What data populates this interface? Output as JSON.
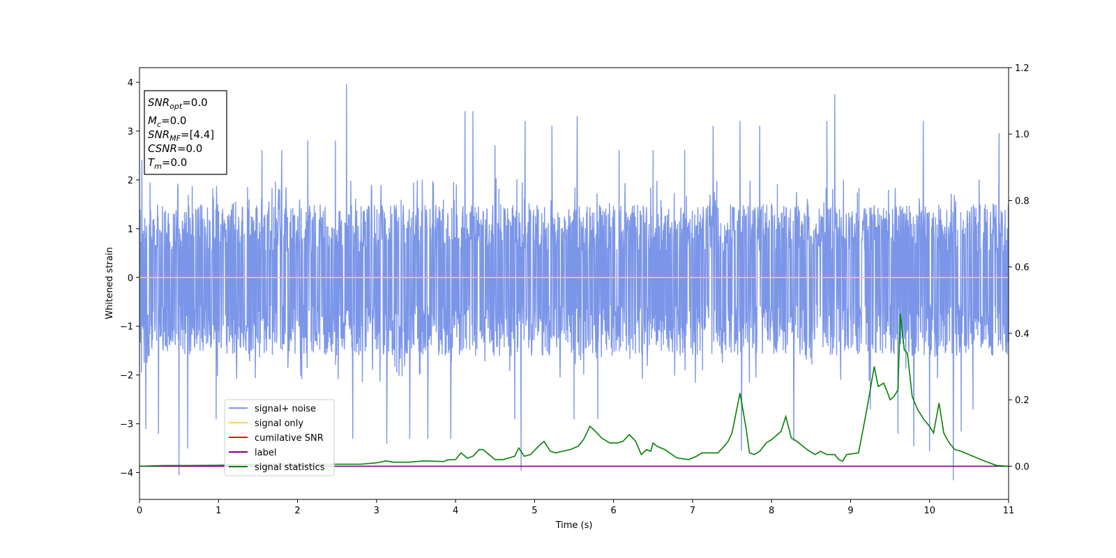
{
  "chart_data": {
    "type": "line",
    "xlabel": "Time (s)",
    "ylabel": "Whitened strain",
    "xlim": [
      0,
      11
    ],
    "ylim_left": [
      -4.55,
      4.3
    ],
    "ylim_right": [
      -0.1,
      1.2
    ],
    "x_ticks": [
      "0",
      "1",
      "2",
      "3",
      "4",
      "5",
      "6",
      "7",
      "8",
      "9",
      "10",
      "11"
    ],
    "x_tick_values": [
      0,
      1,
      2,
      3,
      4,
      5,
      6,
      7,
      8,
      9,
      10,
      11
    ],
    "y_ticks_left": [
      "−4",
      "−3",
      "−2",
      "−1",
      "0",
      "1",
      "2",
      "3",
      "4"
    ],
    "y_tick_values_left": [
      -4,
      -3,
      -2,
      -1,
      0,
      1,
      2,
      3,
      4
    ],
    "y_ticks_right": [
      "0.0",
      "0.2",
      "0.4",
      "0.6",
      "0.8",
      "1.0",
      "1.2"
    ],
    "y_tick_values_right": [
      0.0,
      0.2,
      0.4,
      0.6,
      0.8,
      1.0,
      1.2
    ],
    "info_box": {
      "snr_opt": "=0.0",
      "mc": "=0.0",
      "snr_mf": "=[4.4]",
      "csnr": "=0.0",
      "tm": "=0.0"
    },
    "legend": {
      "position": "lower-left",
      "entries": [
        {
          "label": "signal+ noise",
          "color": "#7b96e8"
        },
        {
          "label": "signal only",
          "color": "#ffcc66"
        },
        {
          "label": "cumilative SNR",
          "color": "#ff0000"
        },
        {
          "label": "label",
          "color": "#800080"
        },
        {
          "label": "signal statistics",
          "color": "#008000"
        }
      ]
    },
    "series": [
      {
        "name": "signal+ noise",
        "axis": "left",
        "color": "#7b96e8",
        "envelope": {
          "typical_upper": 1.5,
          "typical_lower": -1.6
        },
        "spikes": [
          [
            0.03,
            2.4
          ],
          [
            0.08,
            -3.1
          ],
          [
            0.24,
            -3.2
          ],
          [
            0.5,
            -4.05
          ],
          [
            0.61,
            -3.5
          ],
          [
            0.97,
            -2.9
          ],
          [
            1.55,
            2.6
          ],
          [
            1.8,
            2.6
          ],
          [
            2.13,
            2.8
          ],
          [
            2.48,
            2.8
          ],
          [
            2.62,
            3.95
          ],
          [
            2.7,
            -3.3
          ],
          [
            3.13,
            -3.4
          ],
          [
            3.42,
            -3.3
          ],
          [
            3.65,
            -3.3
          ],
          [
            3.94,
            -3.3
          ],
          [
            4.12,
            3.4
          ],
          [
            4.22,
            3.4
          ],
          [
            4.5,
            2.7
          ],
          [
            4.75,
            -2.9
          ],
          [
            4.83,
            -3.95
          ],
          [
            4.88,
            3.2
          ],
          [
            5.22,
            3.1
          ],
          [
            5.5,
            -2.9
          ],
          [
            5.54,
            3.3
          ],
          [
            5.8,
            -2.9
          ],
          [
            6.07,
            2.6
          ],
          [
            6.5,
            2.6
          ],
          [
            6.9,
            2.6
          ],
          [
            7.26,
            3.1
          ],
          [
            7.6,
            3.2
          ],
          [
            7.62,
            -3.55
          ],
          [
            7.85,
            3.1
          ],
          [
            8.28,
            -3.35
          ],
          [
            8.7,
            3.2
          ],
          [
            8.8,
            3.75
          ],
          [
            9.25,
            -2.7
          ],
          [
            9.6,
            -3.2
          ],
          [
            9.8,
            -3.45
          ],
          [
            9.92,
            3.2
          ],
          [
            10.0,
            -3.55
          ],
          [
            10.3,
            -4.15
          ],
          [
            10.4,
            -3.15
          ],
          [
            10.55,
            -2.7
          ],
          [
            10.88,
            2.95
          ]
        ]
      },
      {
        "name": "signal only",
        "axis": "left",
        "color": "#ffcc66",
        "x": [
          0,
          11
        ],
        "y": [
          0,
          0
        ]
      },
      {
        "name": "label",
        "axis": "right",
        "color": "#800080",
        "x": [
          0,
          11
        ],
        "y": [
          0,
          0
        ]
      },
      {
        "name": "signal statistics",
        "axis": "right",
        "color": "#008000",
        "x": [
          0,
          0.3,
          0.6,
          1.0,
          1.5,
          2.0,
          2.5,
          2.8,
          3.0,
          3.12,
          3.22,
          3.4,
          3.6,
          3.7,
          3.85,
          3.9,
          4.0,
          4.07,
          4.15,
          4.22,
          4.3,
          4.35,
          4.5,
          4.6,
          4.75,
          4.8,
          4.87,
          4.95,
          5.05,
          5.12,
          5.2,
          5.27,
          5.35,
          5.45,
          5.55,
          5.62,
          5.7,
          5.75,
          5.85,
          5.95,
          6.05,
          6.12,
          6.2,
          6.28,
          6.35,
          6.42,
          6.47,
          6.5,
          6.55,
          6.65,
          6.8,
          6.95,
          7.05,
          7.12,
          7.2,
          7.32,
          7.4,
          7.45,
          7.5,
          7.55,
          7.6,
          7.63,
          7.68,
          7.72,
          7.78,
          7.85,
          7.93,
          8.0,
          8.12,
          8.18,
          8.25,
          8.32,
          8.45,
          8.55,
          8.62,
          8.7,
          8.8,
          8.85,
          8.9,
          8.95,
          9.1,
          9.15,
          9.22,
          9.3,
          9.35,
          9.42,
          9.47,
          9.5,
          9.55,
          9.6,
          9.63,
          9.68,
          9.72,
          9.78,
          9.85,
          9.93,
          10.0,
          10.05,
          10.12,
          10.18,
          10.25,
          10.32,
          10.4,
          10.55,
          10.7,
          10.85,
          11.0
        ],
        "y": [
          0.0,
          0.002,
          0.002,
          0.003,
          0.006,
          0.006,
          0.006,
          0.006,
          0.01,
          0.016,
          0.012,
          0.012,
          0.016,
          0.015,
          0.014,
          0.019,
          0.02,
          0.04,
          0.024,
          0.03,
          0.05,
          0.05,
          0.02,
          0.02,
          0.03,
          0.055,
          0.03,
          0.035,
          0.06,
          0.075,
          0.045,
          0.04,
          0.045,
          0.05,
          0.06,
          0.08,
          0.12,
          0.11,
          0.085,
          0.07,
          0.07,
          0.075,
          0.095,
          0.075,
          0.035,
          0.05,
          0.045,
          0.07,
          0.06,
          0.05,
          0.025,
          0.02,
          0.03,
          0.04,
          0.04,
          0.04,
          0.06,
          0.075,
          0.1,
          0.16,
          0.22,
          0.18,
          0.11,
          0.04,
          0.035,
          0.045,
          0.07,
          0.08,
          0.105,
          0.15,
          0.085,
          0.075,
          0.05,
          0.035,
          0.045,
          0.035,
          0.035,
          0.02,
          0.015,
          0.035,
          0.04,
          0.1,
          0.19,
          0.3,
          0.24,
          0.25,
          0.22,
          0.2,
          0.21,
          0.23,
          0.46,
          0.35,
          0.34,
          0.21,
          0.17,
          0.14,
          0.12,
          0.1,
          0.19,
          0.1,
          0.07,
          0.05,
          0.045,
          0.03,
          0.015,
          0.002,
          0.0
        ]
      }
    ]
  }
}
